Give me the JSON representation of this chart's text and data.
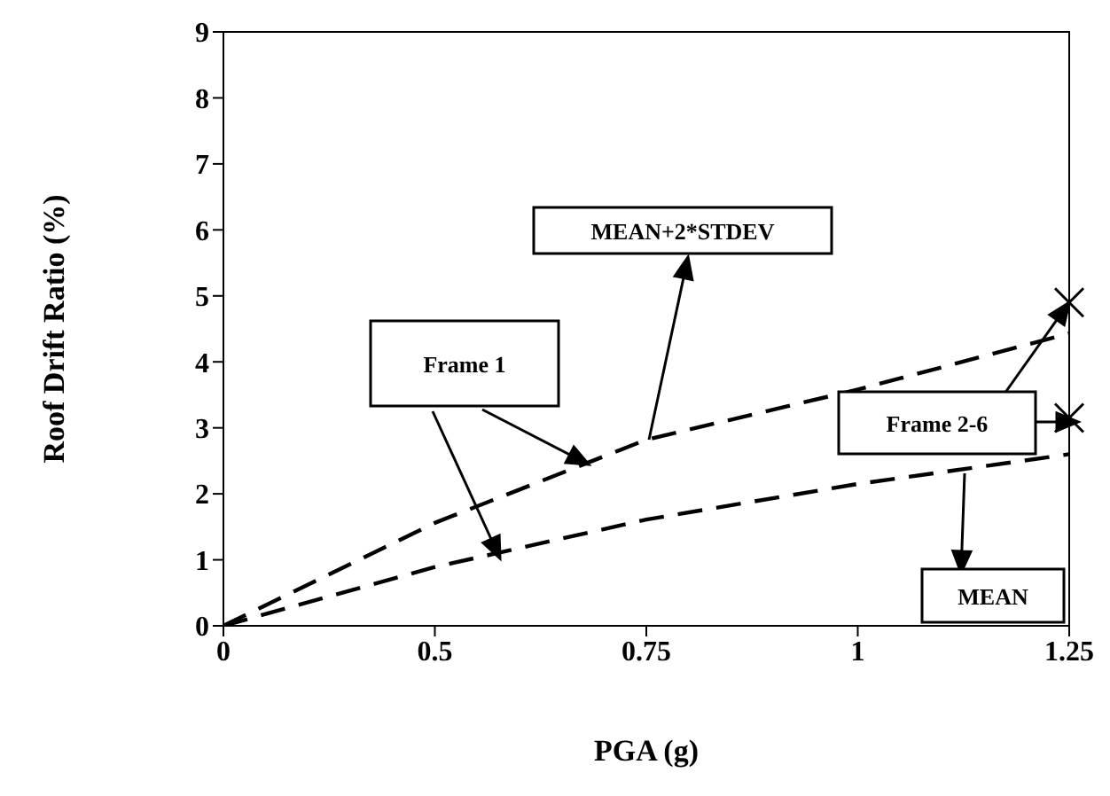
{
  "chart_data": {
    "type": "line",
    "xlabel": "PGA (g)",
    "ylabel": "Roof Drift Ratio (%)",
    "categories": [
      "0",
      "0.5",
      "0.75",
      "1",
      "1.25"
    ],
    "series": [
      {
        "color": "#000000",
        "values": [
          0,
          1.56,
          2.82,
          3.58,
          4.43
        ],
        "line_style": "dashed",
        "marker": "none"
      },
      {
        "color": "#000000",
        "values": [
          0,
          0.89,
          1.61,
          2.15,
          2.6
        ],
        "line_style": "dashed",
        "marker": "none"
      },
      {
        "type": "scatter",
        "color": "#000000",
        "values": [
          null,
          null,
          null,
          null,
          4.9
        ],
        "marker": "cross"
      },
      {
        "type": "scatter",
        "color": "#000000",
        "values": [
          null,
          null,
          null,
          null,
          3.15
        ],
        "marker": "cross"
      }
    ],
    "ylim": [
      0,
      9
    ],
    "yticks": [
      0,
      1,
      2,
      3,
      4,
      5,
      6,
      7,
      8,
      9
    ],
    "annotations": [
      "MEAN+2*STDEV",
      "Frame 1",
      {
        "text": "Frame 2-6",
        "x": "1.25",
        "y": 4.9
      },
      "MEAN"
    ]
  }
}
